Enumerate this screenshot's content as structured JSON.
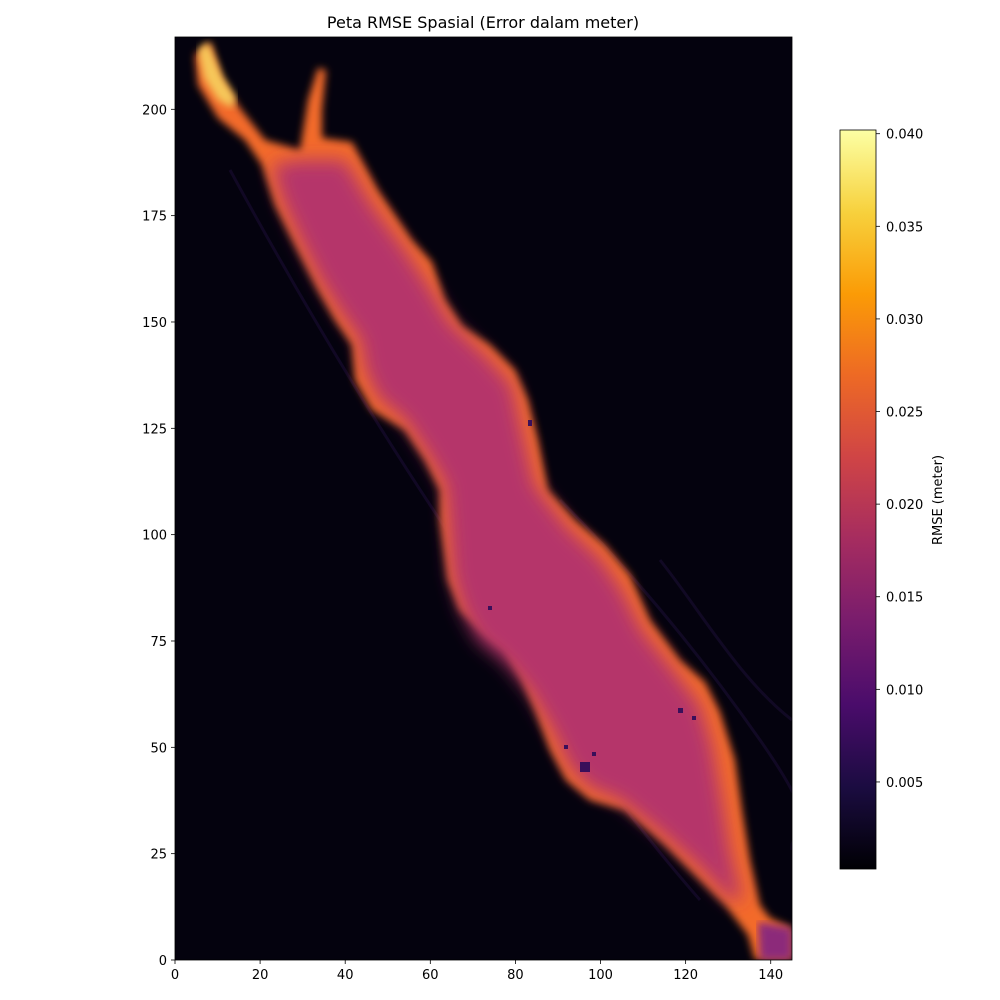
{
  "chart_data": {
    "type": "heatmap",
    "title": "Peta RMSE Spasial (Error dalam meter)",
    "xlabel": "",
    "ylabel": "",
    "xlim": [
      0,
      145
    ],
    "ylim": [
      0,
      217
    ],
    "x_ticks": [
      0,
      20,
      40,
      60,
      80,
      100,
      120,
      140
    ],
    "y_ticks": [
      0,
      25,
      50,
      75,
      100,
      125,
      150,
      175,
      200
    ],
    "colormap": "inferno",
    "colorbar": {
      "label": "RMSE (meter)",
      "range": [
        0.0003,
        0.0402
      ],
      "ticks": [
        "0.005",
        "0.010",
        "0.015",
        "0.020",
        "0.025",
        "0.030",
        "0.035",
        "0.040"
      ]
    },
    "grid": false,
    "description_values": {
      "background_rmse": 0.001,
      "interior_rmse": 0.019,
      "edge_rmse": 0.027,
      "north_tip_rmse": 0.037
    }
  }
}
